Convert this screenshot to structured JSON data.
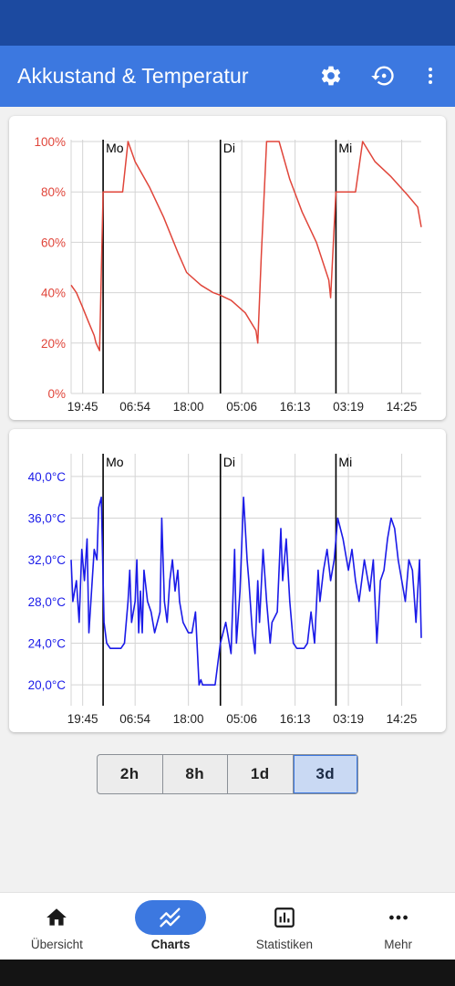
{
  "app": {
    "title": "Akkustand & Temperatur"
  },
  "toolbar": {
    "settings_icon": "gear-icon",
    "history_icon": "history-icon",
    "menu_icon": "more-vert-icon"
  },
  "colors": {
    "status_bar": "#1c4aa0",
    "app_bar": "#3c78e0",
    "battery": "#e0453a",
    "temperature": "#1a1ae8"
  },
  "day_markers": [
    "Mo",
    "Di",
    "Mi"
  ],
  "x_ticks": [
    "19:45",
    "06:54",
    "18:00",
    "05:06",
    "16:13",
    "03:19",
    "14:25"
  ],
  "chart_data": [
    {
      "type": "line",
      "name": "battery",
      "ylim": [
        0,
        100
      ],
      "yticks": [
        "0%",
        "20%",
        "40%",
        "60%",
        "80%",
        "100%"
      ],
      "x_ticks": [
        "19:45",
        "06:54",
        "18:00",
        "05:06",
        "16:13",
        "03:19",
        "14:25"
      ],
      "day_markers": [
        {
          "label": "Mo",
          "x": 1.8
        },
        {
          "label": "Di",
          "x": 8.4
        },
        {
          "label": "Mi",
          "x": 14.9
        }
      ],
      "x": [
        0,
        0.3,
        0.6,
        1.0,
        1.3,
        1.4,
        1.6,
        1.8,
        2.9,
        3.2,
        3.6,
        4.4,
        5.2,
        6.0,
        6.5,
        7.3,
        8.0,
        8.4,
        9.0,
        9.8,
        10.4,
        10.5,
        10.7,
        11.0,
        11.7,
        12.3,
        13.0,
        13.8,
        14.5,
        14.6,
        14.9,
        16.0,
        16.4,
        17.1,
        18.0,
        18.9,
        19.5,
        19.7
      ],
      "y": [
        43,
        40,
        35,
        28,
        23,
        20,
        17,
        80,
        80,
        100,
        92,
        82,
        70,
        56,
        48,
        43,
        40,
        39,
        37,
        32,
        25,
        20,
        55,
        100,
        100,
        85,
        72,
        60,
        45,
        38,
        80,
        80,
        100,
        92,
        86,
        79,
        74,
        66
      ]
    },
    {
      "type": "line",
      "name": "temperature",
      "ylim": [
        18,
        42
      ],
      "yticks": [
        "20,0°C",
        "24,0°C",
        "28,0°C",
        "32,0°C",
        "36,0°C",
        "40,0°C"
      ],
      "x_ticks": [
        "19:45",
        "06:54",
        "18:00",
        "05:06",
        "16:13",
        "03:19",
        "14:25"
      ],
      "day_markers": [
        {
          "label": "Mo",
          "x": 1.8
        },
        {
          "label": "Di",
          "x": 8.4
        },
        {
          "label": "Mi",
          "x": 14.9
        }
      ],
      "x": [
        0,
        0.1,
        0.3,
        0.45,
        0.6,
        0.75,
        0.9,
        1.0,
        1.15,
        1.3,
        1.45,
        1.55,
        1.7,
        1.75,
        1.85,
        2.0,
        2.2,
        2.5,
        2.8,
        3.0,
        3.2,
        3.3,
        3.4,
        3.6,
        3.7,
        3.8,
        3.9,
        4.0,
        4.1,
        4.3,
        4.5,
        4.7,
        5.0,
        5.1,
        5.25,
        5.4,
        5.55,
        5.7,
        5.85,
        6.0,
        6.1,
        6.3,
        6.6,
        6.8,
        7.0,
        7.2,
        7.3,
        7.4,
        7.6,
        7.8,
        8.1,
        8.4,
        8.7,
        9.0,
        9.2,
        9.3,
        9.5,
        9.7,
        9.9,
        10.0,
        10.2,
        10.35,
        10.5,
        10.6,
        10.8,
        11.0,
        11.2,
        11.3,
        11.6,
        11.8,
        11.9,
        12.1,
        12.3,
        12.5,
        12.7,
        12.9,
        13.1,
        13.3,
        13.5,
        13.7,
        13.9,
        14.0,
        14.2,
        14.4,
        14.6,
        14.8,
        15.0,
        15.3,
        15.6,
        15.8,
        16.0,
        16.2,
        16.5,
        16.8,
        17.0,
        17.2,
        17.4,
        17.6,
        17.8,
        18.0,
        18.2,
        18.4,
        18.6,
        18.8,
        19.0,
        19.2,
        19.4,
        19.6,
        19.7
      ],
      "y": [
        32,
        28,
        30,
        26,
        33,
        30,
        34,
        25,
        29,
        33,
        32,
        37,
        38,
        34,
        26,
        24,
        23.5,
        23.5,
        23.5,
        24,
        28,
        31,
        26,
        28,
        32,
        25,
        29,
        25,
        31,
        28,
        27,
        25,
        27,
        36,
        28,
        26,
        30,
        32,
        29,
        31,
        28,
        26,
        25,
        25,
        27,
        20,
        20.5,
        20,
        20,
        20,
        20,
        24,
        26,
        23,
        33,
        24,
        29,
        38,
        32,
        30,
        25,
        23,
        30,
        26,
        33,
        28,
        24,
        26,
        27,
        35,
        30,
        34,
        28,
        24,
        23.5,
        23.5,
        23.5,
        24,
        27,
        24,
        31,
        28,
        31,
        33,
        30,
        32,
        36,
        34,
        31,
        33,
        30,
        28,
        32,
        29,
        32,
        24,
        30,
        31,
        34,
        36,
        35,
        32,
        30,
        28,
        32,
        31,
        26,
        32,
        24.5
      ]
    }
  ],
  "segments": [
    {
      "label": "2h",
      "active": false
    },
    {
      "label": "8h",
      "active": false
    },
    {
      "label": "1d",
      "active": false
    },
    {
      "label": "3d",
      "active": true
    }
  ],
  "bottom_nav": [
    {
      "label": "Übersicht",
      "icon": "home-icon",
      "active": false
    },
    {
      "label": "Charts",
      "icon": "chart-line-icon",
      "active": true
    },
    {
      "label": "Statistiken",
      "icon": "bar-chart-icon",
      "active": false
    },
    {
      "label": "Mehr",
      "icon": "more-horiz-icon",
      "active": false
    }
  ]
}
